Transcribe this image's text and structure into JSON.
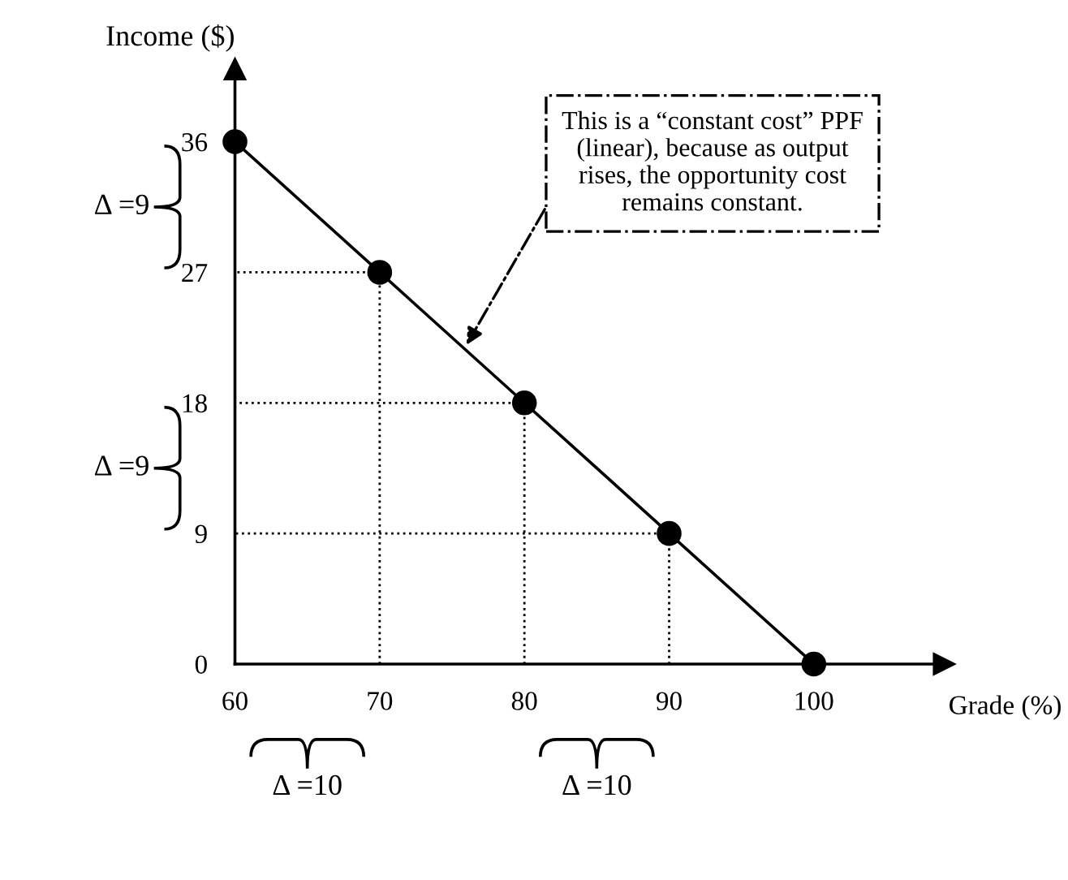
{
  "chart_data": {
    "type": "line",
    "xlabel": "Grade (%)",
    "ylabel": "Income ($)",
    "xlim": [
      60,
      109
    ],
    "ylim": [
      0,
      41
    ],
    "xticks": [
      60,
      70,
      80,
      90,
      100
    ],
    "yticks": [
      0,
      9,
      18,
      27,
      36
    ],
    "grid": false,
    "legend": false,
    "series": [
      {
        "x": [
          60,
          70,
          80,
          90,
          100
        ],
        "values": [
          36,
          27,
          18,
          9,
          0
        ],
        "color": "#000000",
        "marker": "circle",
        "line_style": "solid"
      },
      {
        "x": [
          70,
          70,
          60
        ],
        "values": [
          0,
          27,
          27
        ],
        "color": "#000000",
        "marker": "none",
        "line_style": "dotted"
      },
      {
        "x": [
          80,
          80,
          60
        ],
        "values": [
          0,
          18,
          18
        ],
        "color": "#000000",
        "marker": "none",
        "line_style": "dotted"
      },
      {
        "x": [
          90,
          90,
          60
        ],
        "values": [
          0,
          9,
          9
        ],
        "color": "#000000",
        "marker": "none",
        "line_style": "dotted"
      }
    ],
    "annotations": [
      {
        "text": "This is a “constant cost” PPF\n(linear), because as output\nrises, the opportunity cost\nremains constant.",
        "x": 76,
        "y": 22
      },
      "Δ =9",
      "Δ =9",
      "Δ =10",
      "Δ =10"
    ]
  }
}
